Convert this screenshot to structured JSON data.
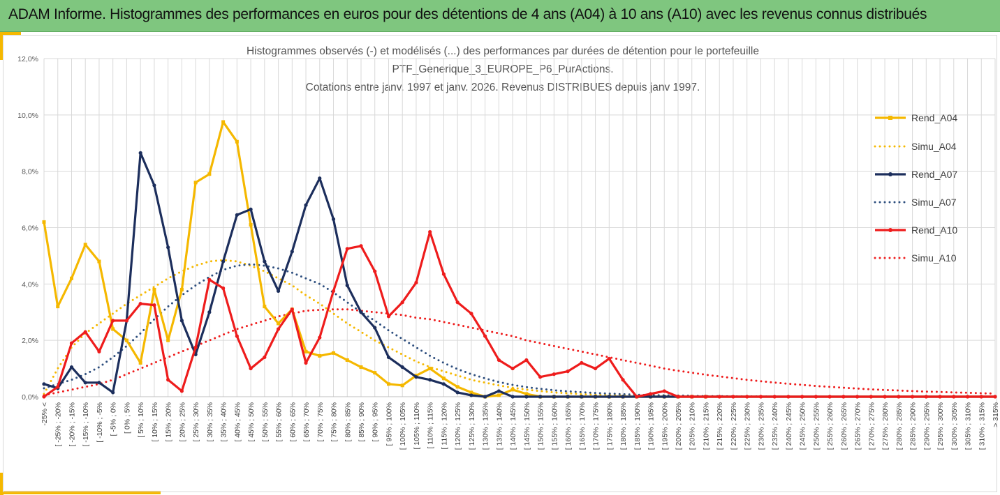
{
  "header": {
    "title": "ADAM Informe. Histogrammes des performances en euros pour des détentions de 4 ans (A04) à 10 ans (A10) avec les revenus connus distribués"
  },
  "chart_data": {
    "type": "line",
    "title_lines": [
      "Histogrammes observés (-) et modélisés (...) des performances par durées de détention pour le portefeuille",
      "PTF_Generique_3_EUROPE_P6_PurActions.",
      "Cotations entre janv. 1997 et janv. 2026. Revenus DISTRIBUES depuis janv 1997."
    ],
    "ylim": [
      0,
      12
    ],
    "yticks": [
      "0,0%",
      "2,0%",
      "4,0%",
      "6,0%",
      "8,0%",
      "10,0%",
      "12,0%"
    ],
    "grid": true,
    "legend_position": "right",
    "categories": [
      "-25% <",
      "[ -25% ; -20%",
      "[ -20% ; -15%",
      "[ -15% ; -10%",
      "[ -10% ; -5%",
      "[ -5% ; 0%",
      "[ 0% ; 5%",
      "[ 5% ; 10%",
      "[ 10% ; 15%",
      "[ 15% ; 20%",
      "[ 20% ; 25%",
      "[ 25% ; 30%",
      "[ 30% ; 35%",
      "[ 35% ; 40%",
      "[ 40% ; 45%",
      "[ 45% ; 50%",
      "[ 50% ; 55%",
      "[ 55% ; 60%",
      "[ 60% ; 65%",
      "[ 65% ; 70%",
      "[ 70% ; 75%",
      "[ 75% ; 80%",
      "[ 80% ; 85%",
      "[ 85% ; 90%",
      "[ 90% ; 95%",
      "[ 95% ; 100%",
      "[ 100% ; 105%",
      "[ 105% ; 110%",
      "[ 110% ; 115%",
      "[ 115% ; 120%",
      "[ 120% ; 125%",
      "[ 125% ; 130%",
      "[ 130% ; 135%",
      "[ 135% ; 140%",
      "[ 140% ; 145%",
      "[ 145% ; 150%",
      "[ 150% ; 155%",
      "[ 155% ; 160%",
      "[ 160% ; 165%",
      "[ 165% ; 170%",
      "[ 170% ; 175%",
      "[ 175% ; 180%",
      "[ 180% ; 185%",
      "[ 185% ; 190%",
      "[ 190% ; 195%",
      "[ 195% ; 200%",
      "[ 200% ; 205%",
      "[ 205% ; 210%",
      "[ 210% ; 215%",
      "[ 215% ; 220%",
      "[ 220% ; 225%",
      "[ 225% ; 230%",
      "[ 230% ; 235%",
      "[ 235% ; 240%",
      "[ 240% ; 245%",
      "[ 245% ; 250%",
      "[ 250% ; 255%",
      "[ 255% ; 260%",
      "[ 260% ; 265%",
      "[ 265% ; 270%",
      "[ 270% ; 275%",
      "[ 275% ; 280%",
      "[ 280% ; 285%",
      "[ 285% ; 290%",
      "[ 290% ; 295%",
      "[ 295% ; 300%",
      "[ 300% ; 305%",
      "[ 305% ; 310%",
      "[ 310% ; 315%",
      "> 315%"
    ],
    "series": [
      {
        "name": "Rend_A04",
        "color": "#f5b800",
        "style": "solid",
        "marker": "square",
        "values": [
          6.2,
          3.2,
          4.2,
          5.4,
          4.8,
          2.4,
          2.0,
          1.2,
          3.8,
          2.0,
          3.8,
          7.6,
          7.9,
          9.75,
          9.05,
          6.1,
          3.2,
          2.6,
          3.1,
          1.6,
          1.45,
          1.55,
          1.3,
          1.05,
          0.85,
          0.45,
          0.4,
          0.75,
          1.0,
          0.65,
          0.35,
          0.15,
          0.0,
          0.05,
          0.25,
          0.1,
          0,
          0,
          0,
          0,
          0,
          0,
          0,
          0,
          0,
          0,
          0,
          0,
          0,
          0,
          0,
          0,
          0,
          0,
          0,
          0,
          0,
          0,
          0,
          0,
          0,
          0,
          0,
          0,
          0,
          0,
          0,
          0,
          0,
          0
        ]
      },
      {
        "name": "Simu_A04",
        "color": "#f5b800",
        "style": "dotted",
        "values": [
          0.1,
          1.0,
          1.75,
          2.25,
          2.6,
          2.95,
          3.3,
          3.6,
          3.9,
          4.2,
          4.45,
          4.65,
          4.8,
          4.85,
          4.8,
          4.65,
          4.45,
          4.2,
          3.95,
          3.6,
          3.3,
          2.95,
          2.6,
          2.3,
          2.0,
          1.75,
          1.5,
          1.25,
          1.05,
          0.9,
          0.75,
          0.6,
          0.5,
          0.4,
          0.32,
          0.25,
          0.2,
          0.15,
          0.12,
          0.09,
          0.07,
          0.05,
          0.04,
          0.03,
          0.02,
          0.02,
          0.01,
          0.01,
          0.01,
          0,
          0,
          0,
          0,
          0,
          0,
          0,
          0,
          0,
          0,
          0,
          0,
          0,
          0,
          0,
          0,
          0,
          0,
          0,
          0,
          0
        ]
      },
      {
        "name": "Rend_A07",
        "color": "#1c2e5c",
        "style": "solid",
        "marker": "circle",
        "values": [
          0.45,
          0.3,
          1.05,
          0.5,
          0.5,
          0.15,
          2.7,
          8.65,
          7.5,
          5.3,
          2.7,
          1.5,
          3.0,
          4.8,
          6.45,
          6.65,
          4.8,
          3.75,
          5.15,
          6.8,
          7.75,
          6.3,
          3.95,
          3.0,
          2.45,
          1.4,
          1.05,
          0.7,
          0.6,
          0.45,
          0.15,
          0.05,
          0.0,
          0.2,
          0.0,
          0.0,
          0,
          0,
          0,
          0,
          0,
          0,
          0,
          0,
          0,
          0,
          0,
          0,
          0,
          0,
          0,
          0,
          0,
          0,
          0,
          0,
          0,
          0,
          0,
          0,
          0,
          0,
          0,
          0,
          0,
          0,
          0,
          0,
          0,
          0
        ]
      },
      {
        "name": "Simu_A07",
        "color": "#2d4e7e",
        "style": "dotted",
        "values": [
          0.3,
          0.45,
          0.6,
          0.8,
          1.05,
          1.4,
          1.8,
          2.25,
          2.75,
          3.2,
          3.6,
          3.95,
          4.25,
          4.5,
          4.65,
          4.7,
          4.65,
          4.55,
          4.4,
          4.2,
          4.0,
          3.7,
          3.35,
          3.0,
          2.7,
          2.35,
          2.05,
          1.75,
          1.45,
          1.2,
          0.98,
          0.8,
          0.65,
          0.52,
          0.42,
          0.34,
          0.28,
          0.23,
          0.19,
          0.16,
          0.13,
          0.11,
          0.09,
          0.07,
          0.06,
          0.05,
          0.04,
          0.03,
          0.02,
          0.02,
          0.01,
          0.01,
          0.01,
          0,
          0,
          0,
          0,
          0,
          0,
          0,
          0,
          0,
          0,
          0,
          0,
          0,
          0,
          0,
          0,
          0
        ]
      },
      {
        "name": "Rend_A10",
        "color": "#ee1c1c",
        "style": "solid",
        "marker": "circle",
        "values": [
          0.0,
          0.35,
          1.9,
          2.3,
          1.6,
          2.7,
          2.7,
          3.3,
          3.25,
          0.6,
          0.2,
          1.75,
          4.15,
          3.85,
          2.15,
          1.0,
          1.4,
          2.4,
          3.1,
          1.2,
          2.1,
          3.75,
          5.25,
          5.35,
          4.45,
          2.85,
          3.35,
          4.05,
          5.85,
          4.35,
          3.35,
          2.95,
          2.15,
          1.3,
          1.0,
          1.3,
          0.7,
          0.8,
          0.9,
          1.2,
          1.0,
          1.35,
          0.6,
          0.0,
          0.1,
          0.2,
          0.0,
          0.0,
          0,
          0,
          0,
          0,
          0,
          0,
          0,
          0,
          0,
          0,
          0,
          0,
          0,
          0,
          0,
          0,
          0,
          0,
          0,
          0,
          0,
          0
        ]
      },
      {
        "name": "Simu_A10",
        "color": "#ee1c1c",
        "style": "dotted",
        "values": [
          0.05,
          0.15,
          0.25,
          0.35,
          0.45,
          0.6,
          0.8,
          1.0,
          1.2,
          1.4,
          1.6,
          1.8,
          2.0,
          2.2,
          2.4,
          2.55,
          2.7,
          2.85,
          2.95,
          3.05,
          3.08,
          3.1,
          3.1,
          3.05,
          3.0,
          2.95,
          2.9,
          2.8,
          2.75,
          2.65,
          2.55,
          2.45,
          2.35,
          2.25,
          2.15,
          2.0,
          1.9,
          1.8,
          1.7,
          1.6,
          1.5,
          1.4,
          1.3,
          1.2,
          1.1,
          1.0,
          0.92,
          0.85,
          0.78,
          0.72,
          0.66,
          0.6,
          0.55,
          0.5,
          0.46,
          0.42,
          0.38,
          0.35,
          0.32,
          0.29,
          0.26,
          0.24,
          0.22,
          0.2,
          0.18,
          0.17,
          0.15,
          0.14,
          0.12,
          0.11
        ]
      }
    ]
  }
}
